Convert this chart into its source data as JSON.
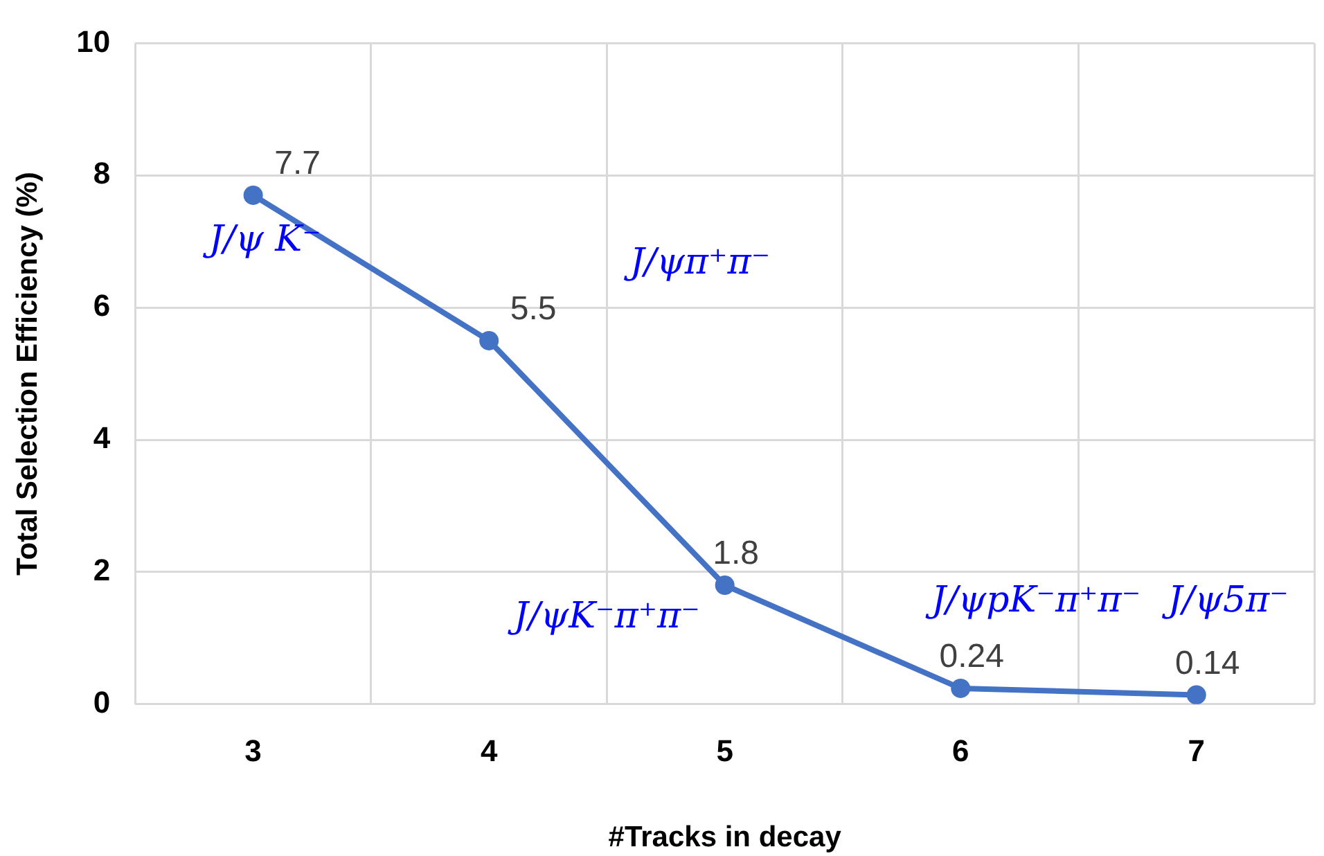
{
  "chart_data": {
    "type": "line",
    "xlabel": "#Tracks in decay",
    "ylabel": "Total Selection Efficiency (%)",
    "categories": [
      "3",
      "4",
      "5",
      "6",
      "7"
    ],
    "series": [
      {
        "color": "#4472c4",
        "values": [
          7.7,
          5.5,
          1.8,
          0.24,
          0.14
        ]
      }
    ],
    "ylim": [
      0,
      10
    ],
    "yticks": [
      0,
      2,
      4,
      6,
      8,
      10
    ],
    "grid": true,
    "legend": false,
    "marker": "circle",
    "line_style": "solid",
    "data_labels": true,
    "annotations": [
      "J/ψ K⁻",
      "J/ψπ⁺π⁻",
      "J/ψK⁻π⁺π⁻",
      "J/ψpK⁻π⁺π⁻",
      "J/ψ5π⁻"
    ]
  }
}
